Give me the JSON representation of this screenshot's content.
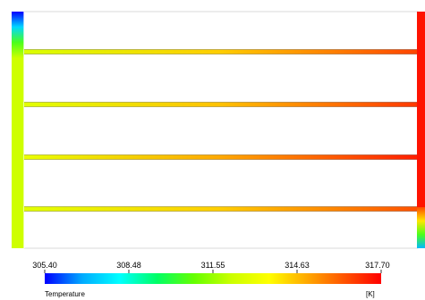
{
  "legend": {
    "title": "Temperature",
    "unit": "[K]",
    "ticks": [
      "305.40",
      "308.48",
      "311.55",
      "314.63",
      "317.70"
    ],
    "min": 305.4,
    "max": 317.7,
    "colors": [
      "#0000ff",
      "#00aaff",
      "#00ffff",
      "#00ff66",
      "#66ff00",
      "#ccff00",
      "#ffff00",
      "#ffaa00",
      "#ff5500",
      "#ff0000"
    ]
  },
  "field": {
    "left_header_temps": [
      305.4,
      307.5,
      310.5,
      312.3
    ],
    "left_pipe_temp": 312.3,
    "right_pipe_temp": 317.4,
    "right_pipe_bottom_temps": [
      316.5,
      314.0,
      310.5,
      307.0
    ],
    "channels": [
      {
        "inlet_temp": 312.6,
        "mid_temp": 314.4,
        "outlet_temp": 316.6
      },
      {
        "inlet_temp": 312.8,
        "mid_temp": 314.6,
        "outlet_temp": 316.8
      },
      {
        "inlet_temp": 313.0,
        "mid_temp": 315.0,
        "outlet_temp": 317.2
      },
      {
        "inlet_temp": 312.8,
        "mid_temp": 314.4,
        "outlet_temp": 316.4
      }
    ]
  }
}
